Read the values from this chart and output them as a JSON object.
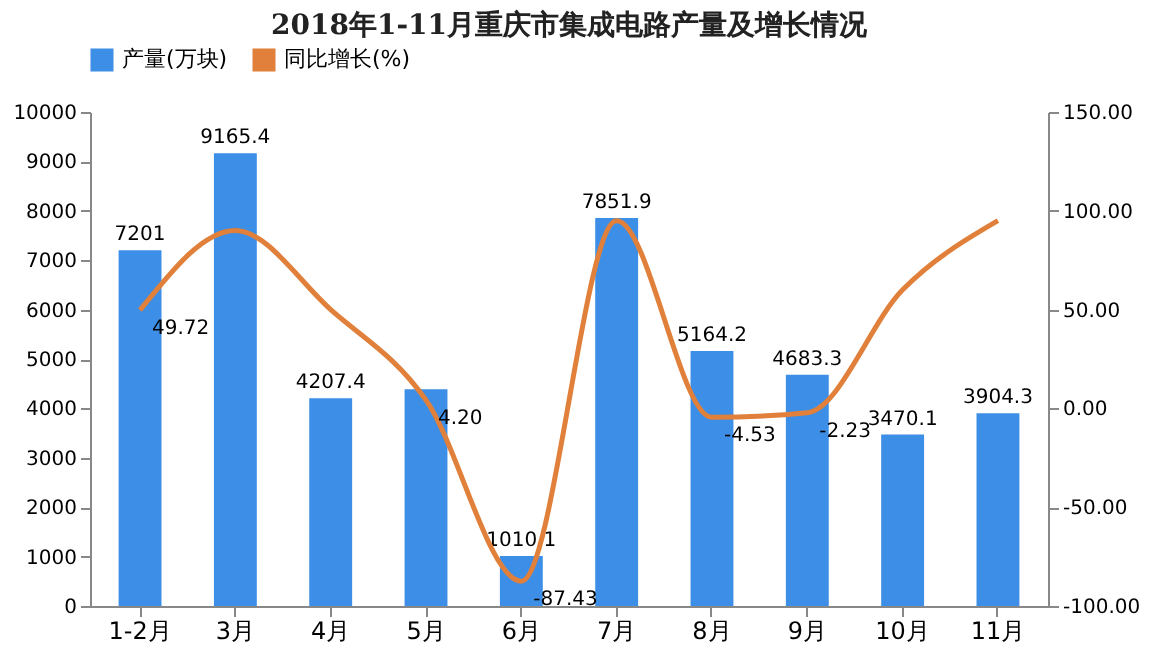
{
  "chart_data": {
    "type": "bar",
    "title": "2018年1-11月重庆市集成电路产量及增长情况",
    "categories": [
      "1-2月",
      "3月",
      "4月",
      "5月",
      "6月",
      "7月",
      "8月",
      "9月",
      "10月",
      "11月"
    ],
    "series": [
      {
        "name": "产量(万块)",
        "color": "#3d8ee6",
        "values": [
          7201,
          9165.4,
          4207.4,
          4390,
          1010.1,
          7851.9,
          5164.2,
          4683.3,
          3470.1,
          3904.3
        ],
        "value_labels": [
          "7201",
          "9165.4",
          "4207.4",
          null,
          "1010.1",
          "7851.9",
          "5164.2",
          "4683.3",
          "3470.1",
          "3904.3"
        ]
      },
      {
        "name": "同比增长(%)",
        "type": "line",
        "axis": "y2",
        "color": "#e0803a",
        "values": [
          49.72,
          90,
          50,
          4.2,
          -87.43,
          95,
          -4.53,
          -2.23,
          60,
          95
        ],
        "value_labels": [
          "49.72",
          null,
          null,
          "4.20",
          "-87.43",
          null,
          "-4.53",
          "-2.23",
          null,
          null
        ]
      }
    ],
    "ylim": [
      0,
      10000
    ],
    "yticks": [
      0,
      1000,
      2000,
      3000,
      4000,
      5000,
      6000,
      7000,
      8000,
      9000,
      10000
    ],
    "y2lim": [
      -100,
      150
    ],
    "y2ticks": [
      {
        "value": -100,
        "label": "-100.00"
      },
      {
        "value": -50,
        "label": "-50.00"
      },
      {
        "value": 0,
        "label": "0.00"
      },
      {
        "value": 50,
        "label": "50.00"
      },
      {
        "value": 100,
        "label": "100.00"
      },
      {
        "value": 150,
        "label": "150.00"
      }
    ],
    "legend": "top",
    "grid": false,
    "marker": "none"
  }
}
